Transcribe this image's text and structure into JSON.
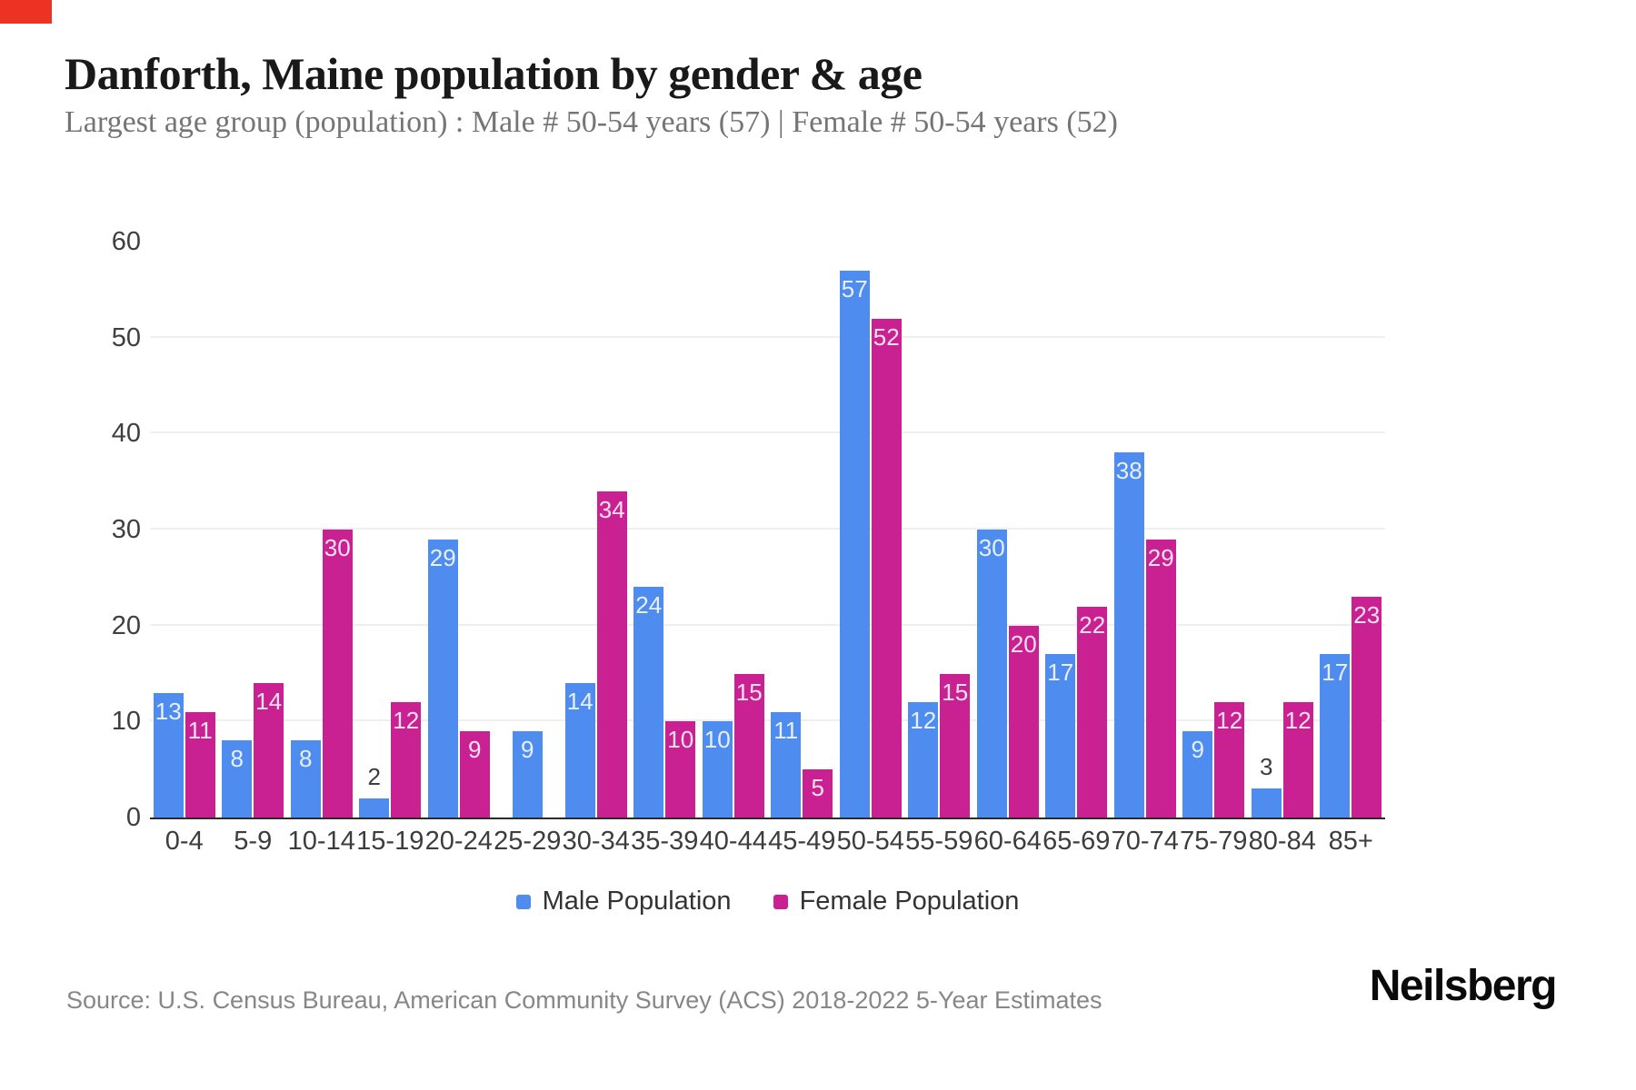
{
  "page": {
    "title": "Danforth, Maine population by gender & age",
    "subtitle": "Largest age group (population) : Male # 50-54 years (57) | Female # 50-54 years (52)"
  },
  "accent_colors": {
    "corner_badge": "#eb3223",
    "male": "#4f8cf0",
    "female": "#c92191"
  },
  "chart_data": {
    "type": "bar",
    "title": "Danforth, Maine population by gender & age",
    "categories": [
      "0-4",
      "5-9",
      "10-14",
      "15-19",
      "20-24",
      "25-29",
      "30-34",
      "35-39",
      "40-44",
      "45-49",
      "50-54",
      "55-59",
      "60-64",
      "65-69",
      "70-74",
      "75-79",
      "80-84",
      "85+"
    ],
    "series": [
      {
        "name": "Male Population",
        "color": "#4f8cf0",
        "values": [
          13,
          8,
          8,
          2,
          29,
          9,
          14,
          24,
          10,
          11,
          57,
          12,
          30,
          17,
          38,
          9,
          3,
          17
        ]
      },
      {
        "name": "Female Population",
        "color": "#c92191",
        "values": [
          11,
          14,
          30,
          12,
          9,
          0,
          34,
          10,
          15,
          5,
          52,
          15,
          20,
          22,
          29,
          12,
          12,
          23
        ]
      }
    ],
    "xlabel": "",
    "ylabel": "",
    "ylim": [
      0,
      60
    ],
    "yticks": [
      0,
      10,
      20,
      30,
      40,
      50,
      60
    ],
    "grid": "horizontal-light",
    "legend_position": "bottom"
  },
  "footer": {
    "source": "Source: U.S. Census Bureau, American Community Survey (ACS) 2018-2022 5-Year Estimates",
    "brand": "Neilsberg"
  }
}
